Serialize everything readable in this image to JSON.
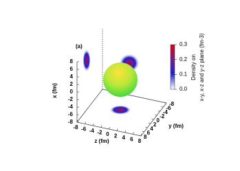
{
  "chart_data": {
    "type": "projection3d",
    "panel_label": "(a)",
    "xlabel": "x (fm)",
    "ylabel": "y (fm)",
    "zlabel": "z (fm)",
    "xlim": [
      -8,
      8
    ],
    "ylim": [
      -8,
      8
    ],
    "zlim": [
      -8,
      8
    ],
    "xticks": [
      8,
      6,
      4,
      2,
      0,
      -2,
      -4,
      -6,
      -8
    ],
    "yticks": [
      8,
      6,
      4,
      2,
      0,
      -2,
      -4,
      -6,
      -8
    ],
    "zticks": [
      -8,
      -6,
      -4,
      -2,
      0,
      2,
      4,
      6,
      8
    ],
    "colorbar": {
      "label_lines": [
        "Density on",
        "x-y, x-z and y-z plane (fm-3)"
      ],
      "clim": [
        0,
        0.3
      ],
      "ticks": [
        {
          "value": 0,
          "label": "0.0"
        },
        0.1,
        0.2,
        0.3
      ]
    }
  }
}
